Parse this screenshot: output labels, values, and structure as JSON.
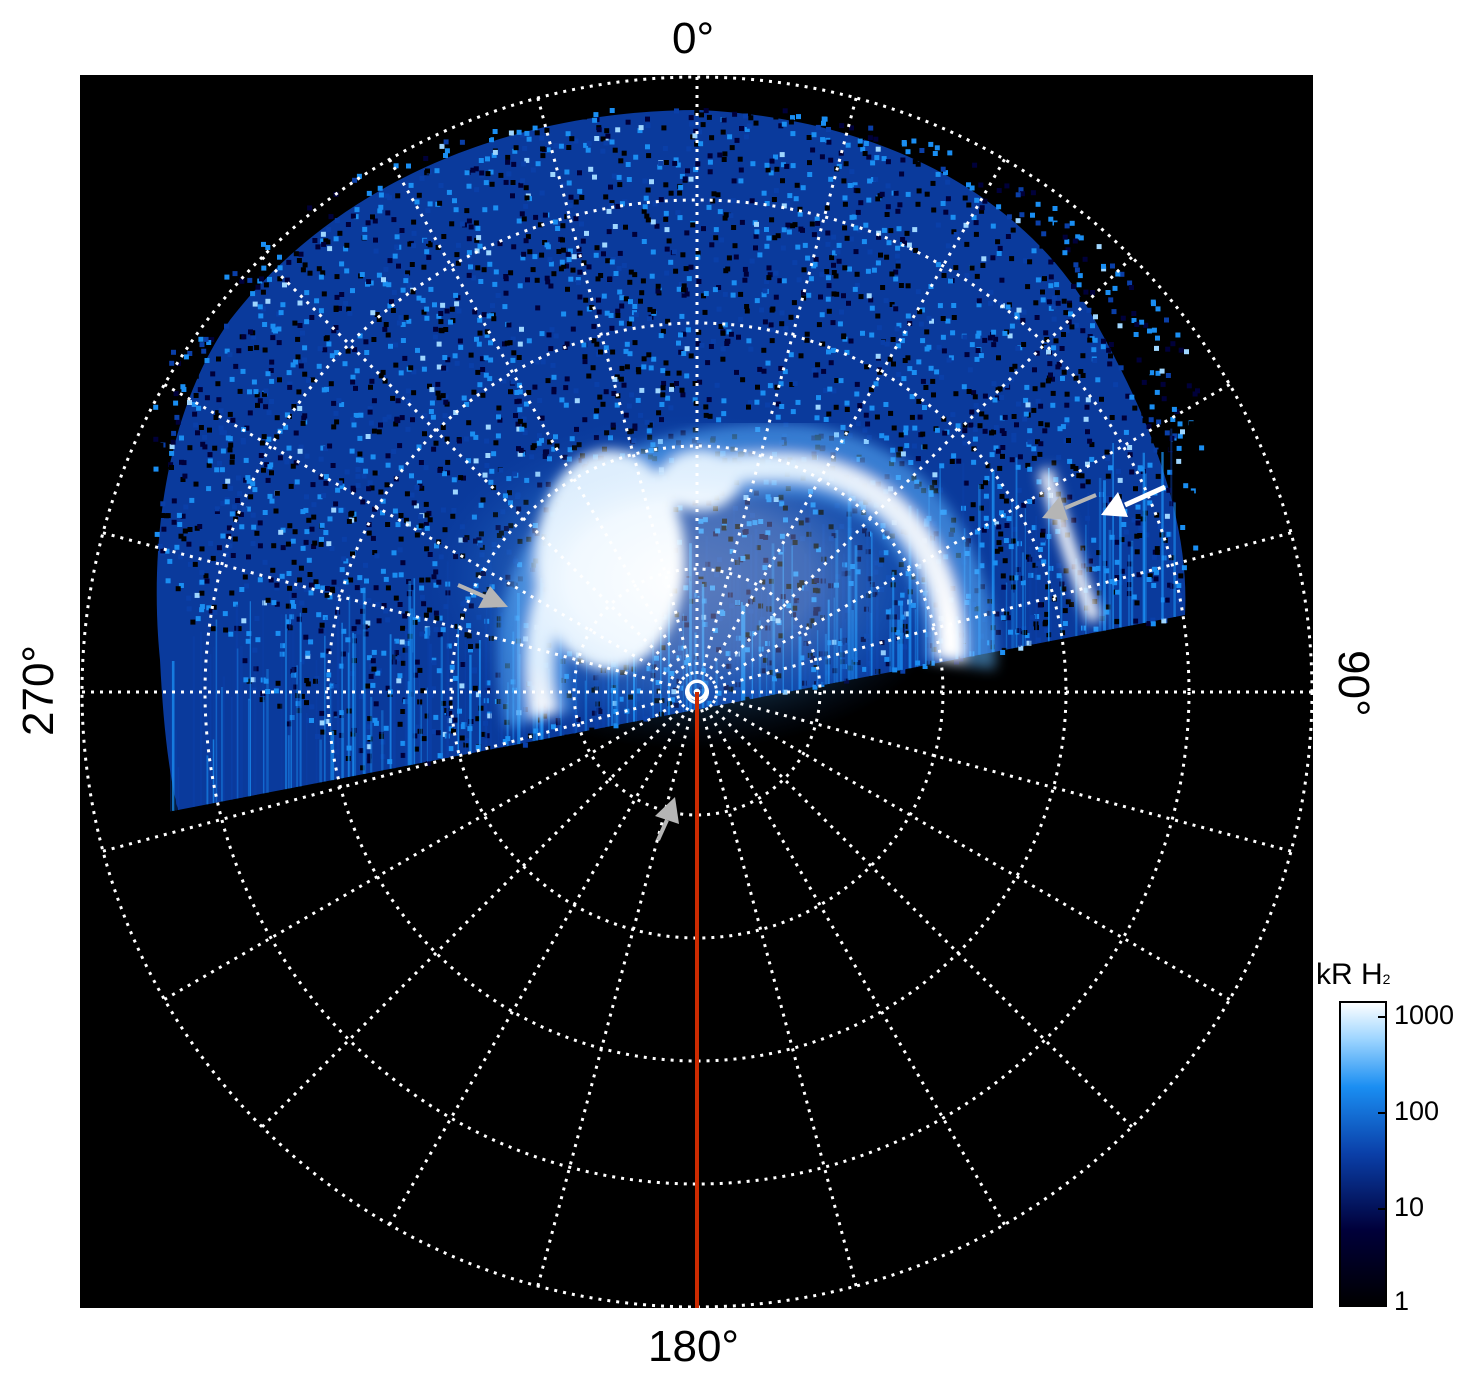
{
  "figure": {
    "angle_labels": {
      "top": "0°",
      "right": "90°",
      "bottom": "180°",
      "left": "270°"
    },
    "colorbar": {
      "title": "kR H",
      "title_subscript": "2",
      "ticks": [
        "1000",
        "100",
        "10",
        "1"
      ],
      "scale": "log",
      "colors": [
        "#000000",
        "#00003a",
        "#0a3fa8",
        "#1a8ef2",
        "#9fd6ff",
        "#ffffff"
      ]
    },
    "colors": {
      "background": "#000000",
      "grid": "#ffffff",
      "meridian_line": "#cc2a00",
      "arrow_gray": "#b5b5b5",
      "arrow_white": "#ffffff"
    },
    "grid": {
      "rings": 5,
      "meridians_every_deg": 15,
      "style": "dotted"
    }
  }
}
